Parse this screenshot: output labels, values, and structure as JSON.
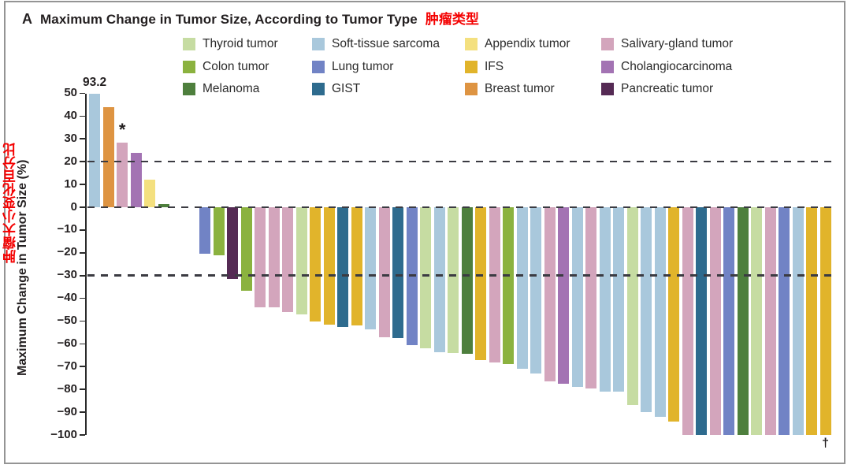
{
  "panel_label": "A",
  "title": "Maximum Change in Tumor Size, According to Tumor Type",
  "title_zh": "肿瘤类型",
  "y_axis": {
    "label_en": "Maximum Change in Tumor Size (%)",
    "label_zh": "肿瘤大小变化百分比",
    "ticks": [
      "50",
      "40",
      "30",
      "20",
      "10",
      "0",
      "−10",
      "−20",
      "−30",
      "−40",
      "−50",
      "−60",
      "−70",
      "−80",
      "−90",
      "−100"
    ]
  },
  "annotations": {
    "capped_bar_label": "93.2",
    "asterisk": "*",
    "dagger": "†"
  },
  "colors": {
    "thyroid": "#c6dca2",
    "colon": "#8bb23f",
    "melanoma": "#4e7f3d",
    "soft_tissue": "#a9c8dc",
    "lung": "#7183c5",
    "gist": "#2e6b8e",
    "appendix": "#f4e07f",
    "ifs": "#e1b42b",
    "breast": "#de9442",
    "salivary": "#d3a5bc",
    "cholangio": "#a373b3",
    "pancreatic": "#552a54",
    "dash": "#3b3b42",
    "axis": "#2a2a2a",
    "accent_red": "#f40000"
  },
  "legend": [
    {
      "label": "Thyroid tumor",
      "color_key": "thyroid"
    },
    {
      "label": "Colon tumor",
      "color_key": "colon"
    },
    {
      "label": "Melanoma",
      "color_key": "melanoma"
    },
    {
      "label": "Soft-tissue sarcoma",
      "color_key": "soft_tissue"
    },
    {
      "label": "Lung tumor",
      "color_key": "lung"
    },
    {
      "label": "GIST",
      "color_key": "gist"
    },
    {
      "label": "Appendix tumor",
      "color_key": "appendix"
    },
    {
      "label": "IFS",
      "color_key": "ifs"
    },
    {
      "label": "Breast tumor",
      "color_key": "breast"
    },
    {
      "label": "Salivary-gland tumor",
      "color_key": "salivary"
    },
    {
      "label": "Cholangiocarcinoma",
      "color_key": "cholangio"
    },
    {
      "label": "Pancreatic tumor",
      "color_key": "pancreatic"
    }
  ],
  "chart_data": {
    "type": "bar",
    "title": "Maximum Change in Tumor Size, According to Tumor Type",
    "xlabel": "",
    "ylabel": "Maximum Change in Tumor Size (%)",
    "ylim": [
      -100,
      50
    ],
    "y_tick_step": 10,
    "grid": false,
    "legend_position": "top",
    "reference_lines_dashed": [
      20,
      0,
      -30
    ],
    "bar_cap": 50,
    "gap_after_bar_index": 5,
    "gap_slots": 2,
    "bars": [
      {
        "type": "soft_tissue",
        "value": 93.2,
        "capped": true,
        "label": "93.2"
      },
      {
        "type": "breast",
        "value": 44
      },
      {
        "type": "salivary",
        "value": 28.5,
        "mark": "*"
      },
      {
        "type": "cholangio",
        "value": 24
      },
      {
        "type": "appendix",
        "value": 12
      },
      {
        "type": "melanoma",
        "value": 1.5
      },
      {
        "type": "lung",
        "value": -20.5
      },
      {
        "type": "colon",
        "value": -21
      },
      {
        "type": "pancreatic",
        "value": -31.5
      },
      {
        "type": "colon",
        "value": -36.5
      },
      {
        "type": "salivary",
        "value": -44
      },
      {
        "type": "salivary",
        "value": -44
      },
      {
        "type": "salivary",
        "value": -46
      },
      {
        "type": "thyroid",
        "value": -47
      },
      {
        "type": "ifs",
        "value": -50
      },
      {
        "type": "ifs",
        "value": -51.5
      },
      {
        "type": "gist",
        "value": -52.5
      },
      {
        "type": "ifs",
        "value": -52
      },
      {
        "type": "soft_tissue",
        "value": -53.5
      },
      {
        "type": "salivary",
        "value": -57
      },
      {
        "type": "gist",
        "value": -57.5
      },
      {
        "type": "lung",
        "value": -60.5
      },
      {
        "type": "thyroid",
        "value": -62
      },
      {
        "type": "soft_tissue",
        "value": -63.5
      },
      {
        "type": "thyroid",
        "value": -64
      },
      {
        "type": "melanoma",
        "value": -64.5
      },
      {
        "type": "ifs",
        "value": -67
      },
      {
        "type": "salivary",
        "value": -68
      },
      {
        "type": "colon",
        "value": -69
      },
      {
        "type": "soft_tissue",
        "value": -71
      },
      {
        "type": "soft_tissue",
        "value": -73
      },
      {
        "type": "salivary",
        "value": -76.5
      },
      {
        "type": "cholangio",
        "value": -77.5
      },
      {
        "type": "soft_tissue",
        "value": -79
      },
      {
        "type": "salivary",
        "value": -79.5
      },
      {
        "type": "soft_tissue",
        "value": -81
      },
      {
        "type": "soft_tissue",
        "value": -81
      },
      {
        "type": "thyroid",
        "value": -87
      },
      {
        "type": "soft_tissue",
        "value": -90
      },
      {
        "type": "soft_tissue",
        "value": -92
      },
      {
        "type": "ifs",
        "value": -94
      },
      {
        "type": "salivary",
        "value": -100
      },
      {
        "type": "gist",
        "value": -100
      },
      {
        "type": "salivary",
        "value": -100
      },
      {
        "type": "lung",
        "value": -100
      },
      {
        "type": "melanoma",
        "value": -100
      },
      {
        "type": "thyroid",
        "value": -100
      },
      {
        "type": "salivary",
        "value": -100
      },
      {
        "type": "lung",
        "value": -100
      },
      {
        "type": "soft_tissue",
        "value": -100
      },
      {
        "type": "ifs",
        "value": -100
      },
      {
        "type": "ifs",
        "value": -100,
        "mark_below": "†"
      }
    ]
  }
}
